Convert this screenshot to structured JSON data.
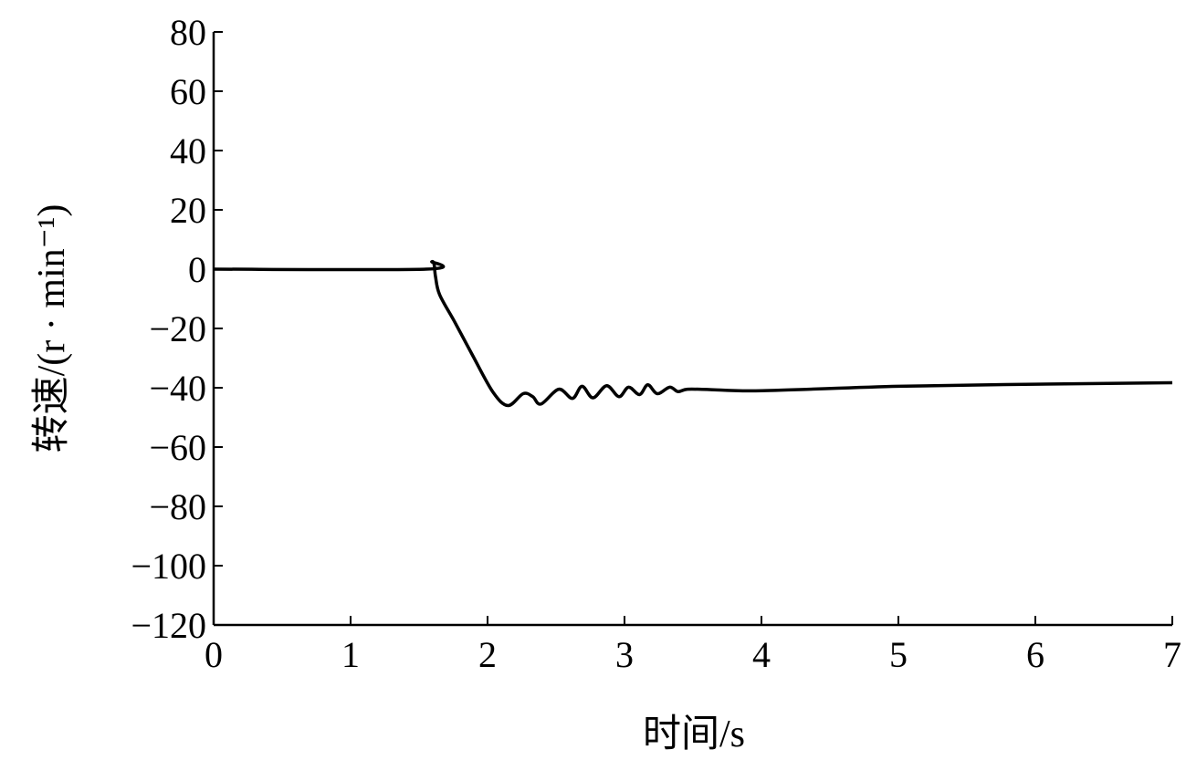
{
  "chart_data": {
    "type": "line",
    "title": "",
    "xlabel": "时间/s",
    "ylabel": "转速/(r · min⁻¹)",
    "xlim": [
      0,
      7
    ],
    "ylim": [
      -120,
      80
    ],
    "xticks": [
      "0",
      "1",
      "2",
      "3",
      "4",
      "5",
      "6",
      "7"
    ],
    "yticks": [
      "80",
      "60",
      "40",
      "20",
      "0",
      "−20",
      "−40",
      "−60",
      "−80",
      "−100",
      "−120"
    ],
    "grid": false,
    "line_color": "#000000",
    "series": [
      {
        "x": [
          0,
          1.55,
          1.593,
          1.61,
          1.62,
          1.65,
          1.76,
          1.89,
          2.04,
          2.15,
          2.26,
          2.33,
          2.39,
          2.52,
          2.62,
          2.69,
          2.77,
          2.87,
          2.96,
          3.03,
          3.11,
          3.17,
          3.24,
          3.33,
          3.39,
          3.46,
          3.62,
          4,
          5,
          6,
          7
        ],
        "y": [
          0,
          0,
          2.5,
          1.5,
          -2.5,
          -8.6,
          -17.8,
          -29,
          -41.5,
          -46,
          -42,
          -43,
          -45.5,
          -40.5,
          -43.6,
          -39.5,
          -43.4,
          -39.3,
          -43,
          -39.8,
          -42.3,
          -39,
          -42,
          -39.8,
          -41.3,
          -40.5,
          -40.6,
          -41,
          -39.5,
          -38.8,
          -38.3
        ]
      }
    ]
  }
}
